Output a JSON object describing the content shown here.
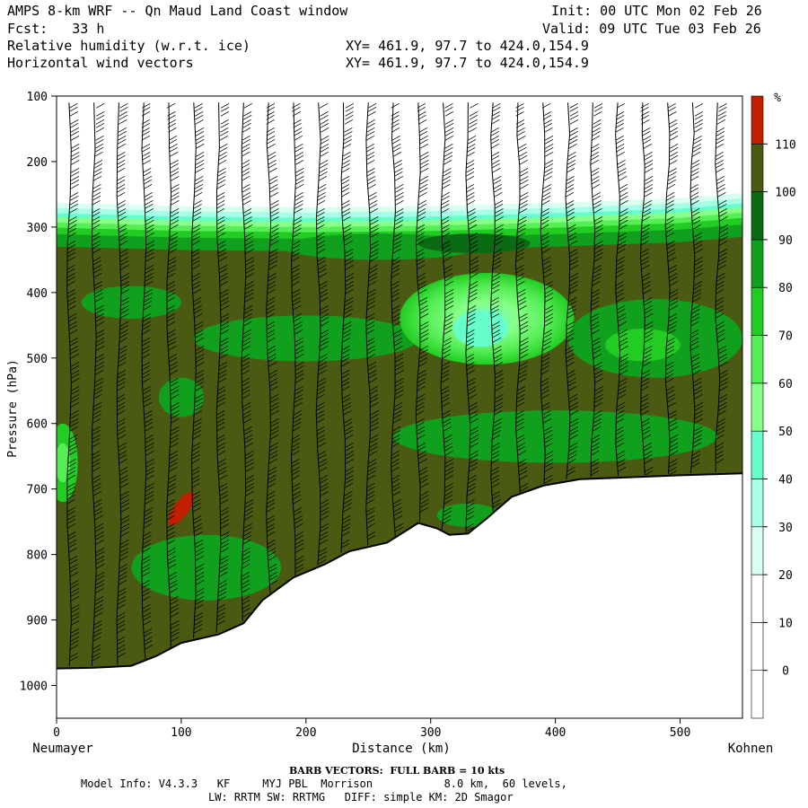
{
  "header": {
    "title": "AMPS 8-km WRF -- Qn Maud Land Coast window",
    "fcst": "Fcst:   33 h",
    "field1": "Relative humidity (w.r.t. ice)",
    "field2": "Horizontal wind vectors",
    "xy1": "XY= 461.9, 97.7 to 424.0,154.9",
    "xy2": "XY= 461.9, 97.7 to 424.0,154.9",
    "init": "Init: 00 UTC Mon 02 Feb 26",
    "valid": "Valid: 09 UTC Tue 03 Feb 26"
  },
  "footer": {
    "barb_note": "BARB VECTORS:  FULL BARB = 10 kts",
    "model_info_1": "Model Info: V4.3.3   KF     MYJ PBL  Morrison           8.0 km,  60 levels,",
    "model_info_2": "LW: RRTM SW: RRTMG   DIFF: simple KM: 2D Smagor"
  },
  "chart_data": {
    "type": "heatmap",
    "title": "Relative humidity (w.r.t. ice)",
    "xlabel": "Distance (km)",
    "ylabel": "Pressure (hPa)",
    "x_start_label": "Neumayer",
    "x_end_label": "Kohnen",
    "xlim": [
      0,
      550
    ],
    "ylim": [
      1050,
      100
    ],
    "x_ticks": [
      0,
      100,
      200,
      300,
      400,
      500
    ],
    "y_ticks": [
      100,
      200,
      300,
      400,
      500,
      600,
      700,
      800,
      900,
      1000
    ],
    "colorbar": {
      "unit": "%",
      "levels": [
        0,
        10,
        20,
        30,
        40,
        50,
        60,
        70,
        80,
        90,
        100,
        110
      ],
      "colors": [
        "#ffffff",
        "#ffffff",
        "#ffffff",
        "#d9fff0",
        "#a6ffe6",
        "#66ffcc",
        "#88ff88",
        "#55ee55",
        "#22cc22",
        "#11a01e",
        "#0a6b14",
        "#4a5a12",
        "#c02000"
      ]
    },
    "terrain_surface": [
      {
        "x": 0,
        "p": 974
      },
      {
        "x": 30,
        "p": 973
      },
      {
        "x": 60,
        "p": 970
      },
      {
        "x": 80,
        "p": 955
      },
      {
        "x": 100,
        "p": 935
      },
      {
        "x": 130,
        "p": 922
      },
      {
        "x": 150,
        "p": 905
      },
      {
        "x": 165,
        "p": 870
      },
      {
        "x": 190,
        "p": 835
      },
      {
        "x": 215,
        "p": 815
      },
      {
        "x": 235,
        "p": 795
      },
      {
        "x": 265,
        "p": 782
      },
      {
        "x": 290,
        "p": 752
      },
      {
        "x": 305,
        "p": 760
      },
      {
        "x": 315,
        "p": 770
      },
      {
        "x": 330,
        "p": 768
      },
      {
        "x": 345,
        "p": 745
      },
      {
        "x": 365,
        "p": 712
      },
      {
        "x": 390,
        "p": 695
      },
      {
        "x": 420,
        "p": 685
      },
      {
        "x": 460,
        "p": 682
      },
      {
        "x": 500,
        "p": 679
      },
      {
        "x": 550,
        "p": 676
      }
    ],
    "moist_layer_top": [
      {
        "x": 0,
        "p": 285
      },
      {
        "x": 100,
        "p": 290
      },
      {
        "x": 200,
        "p": 292
      },
      {
        "x": 300,
        "p": 290
      },
      {
        "x": 400,
        "p": 285
      },
      {
        "x": 500,
        "p": 278
      },
      {
        "x": 550,
        "p": 270
      }
    ],
    "features": [
      {
        "name": "dry pocket",
        "x": 340,
        "p": 450,
        "rh": 50
      },
      {
        "name": "supersaturated spot",
        "x": 100,
        "p": 730,
        "rh": 115
      }
    ],
    "barb_columns_km": [
      10,
      30,
      50,
      70,
      90,
      110,
      130,
      150,
      170,
      190,
      210,
      230,
      250,
      270,
      290,
      310,
      330,
      350,
      370,
      390,
      410,
      430,
      450,
      470,
      490,
      510,
      530
    ],
    "barb_units": "kts"
  }
}
